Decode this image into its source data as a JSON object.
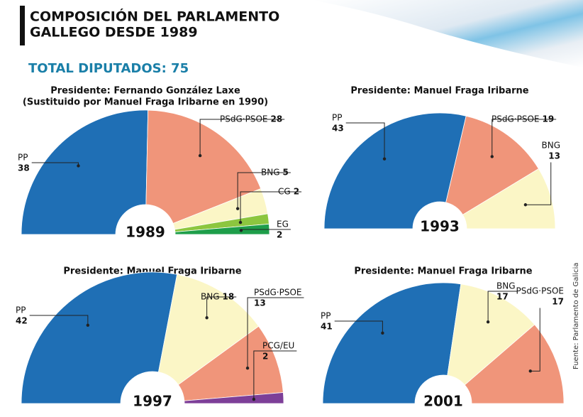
{
  "title_lines": [
    "COMPOSICIÓN DEL PARLAMENTO",
    "GALLEGO DESDE 1989"
  ],
  "subtitle": "TOTAL DIPUTADOS: 75",
  "source": "Fuente: Parlamento de Galicia",
  "chart_data": [
    {
      "type": "pie",
      "title": "Presidente: Fernando González Laxe",
      "subtitle": "(Sustituido por Manuel Fraga Iribarne en 1990)",
      "label": "1989",
      "categories": [
        "PP",
        "PSdG·PSOE",
        "BNG",
        "CG",
        "EG"
      ],
      "values": [
        38,
        28,
        5,
        2,
        2
      ],
      "colors": [
        "#1f6fb5",
        "#f0957a",
        "#fbf6c6",
        "#8cc63f",
        "#1e9e4a"
      ]
    },
    {
      "type": "pie",
      "title": "Presidente: Manuel Fraga Iribarne",
      "label": "1993",
      "categories": [
        "PP",
        "PSdG·PSOE",
        "BNG"
      ],
      "values": [
        43,
        19,
        13
      ],
      "colors": [
        "#1f6fb5",
        "#f0957a",
        "#fbf6c6"
      ]
    },
    {
      "type": "pie",
      "title": "Presidente: Manuel Fraga Iribarne",
      "label": "1997",
      "categories": [
        "PP",
        "BNG",
        "PSdG·PSOE",
        "PCG/EU"
      ],
      "values": [
        42,
        18,
        13,
        2
      ],
      "colors": [
        "#1f6fb5",
        "#fbf6c6",
        "#f0957a",
        "#7d3f98"
      ]
    },
    {
      "type": "pie",
      "title": "Presidente: Manuel Fraga Iribarne",
      "label": "2001",
      "categories": [
        "PP",
        "BNG",
        "PSdG·PSOE"
      ],
      "values": [
        41,
        17,
        17
      ],
      "colors": [
        "#1f6fb5",
        "#fbf6c6",
        "#f0957a"
      ]
    }
  ]
}
